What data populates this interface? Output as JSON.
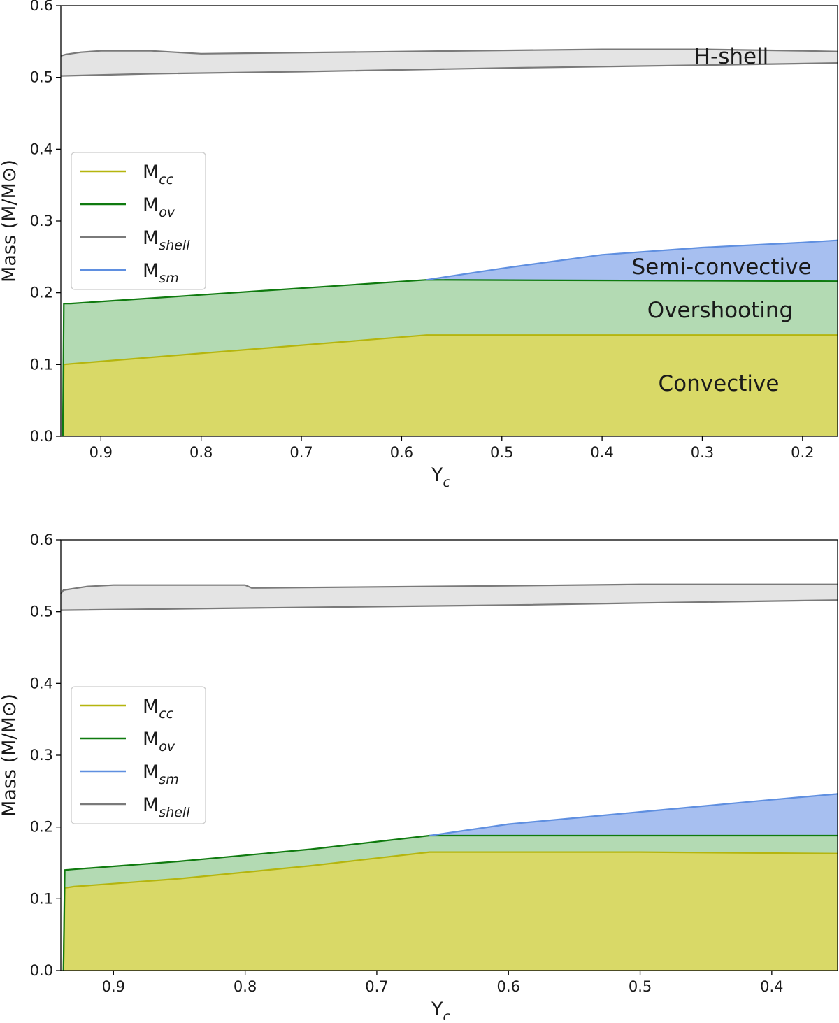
{
  "charts": [
    {
      "chart_data": {
        "type": "area",
        "x_reversed": true,
        "xlabel": "Y",
        "xlabel_sub": "c",
        "ylabel": "Mass (M/M⊙)",
        "xlim": [
          0.94,
          0.165
        ],
        "ylim": [
          0.0,
          0.6
        ],
        "xticks": [
          "0.9",
          "0.8",
          "0.7",
          "0.6",
          "0.5",
          "0.4",
          "0.3",
          "0.2"
        ],
        "xtick_values": [
          0.9,
          0.8,
          0.7,
          0.6,
          0.5,
          0.4,
          0.3,
          0.2
        ],
        "yticks": [
          "0.0",
          "0.1",
          "0.2",
          "0.3",
          "0.4",
          "0.5",
          "0.6"
        ],
        "ytick_values": [
          0.0,
          0.1,
          0.2,
          0.3,
          0.4,
          0.5,
          0.6
        ],
        "series": [
          {
            "name": "M",
            "sub": "cc",
            "key": "cc",
            "x": [
              0.938,
              0.937,
              0.93,
              0.575,
              0.165
            ],
            "values": [
              0.0,
              0.1,
              0.101,
              0.141,
              0.141
            ]
          },
          {
            "name": "M",
            "sub": "ov",
            "key": "ov",
            "x": [
              0.938,
              0.937,
              0.93,
              0.575,
              0.165
            ],
            "values": [
              0.0,
              0.185,
              0.185,
              0.218,
              0.216
            ]
          },
          {
            "name": "M",
            "sub": "shell",
            "key": "shell",
            "x": [
              0.94,
              0.85,
              0.7,
              0.5,
              0.3,
              0.165
            ],
            "values": [
              0.502,
              0.505,
              0.508,
              0.513,
              0.517,
              0.52
            ]
          },
          {
            "name": "M",
            "sub": "sm",
            "key": "sm",
            "x": [
              0.575,
              0.5,
              0.4,
              0.3,
              0.2,
              0.165
            ],
            "values": [
              0.218,
              0.234,
              0.253,
              0.263,
              0.27,
              0.273
            ]
          }
        ],
        "shell_top": {
          "x": [
            0.94,
            0.935,
            0.92,
            0.9,
            0.85,
            0.8,
            0.6,
            0.4,
            0.3,
            0.2,
            0.165
          ],
          "values": [
            0.53,
            0.532,
            0.535,
            0.537,
            0.537,
            0.533,
            0.536,
            0.539,
            0.539,
            0.537,
            0.536
          ]
        },
        "fills": [
          {
            "from": "cc",
            "to": "zero",
            "label": "Convective",
            "color": "#d9d967"
          },
          {
            "from": "ov",
            "to": "cc",
            "label": "Overshooting",
            "color": "#b3dab3"
          },
          {
            "from": "sm",
            "to": "ov",
            "label": "Semi-convective",
            "color": "#a7bff0"
          },
          {
            "from": "shell_top",
            "to": "shell",
            "label": "H-shell",
            "color": "#e4e4e4"
          }
        ],
        "legend_order": [
          "cc",
          "ov",
          "shell",
          "sm"
        ],
        "legend_position": "center-left"
      }
    },
    {
      "chart_data": {
        "type": "area",
        "x_reversed": true,
        "xlabel": "Y",
        "xlabel_sub": "c",
        "ylabel": "Mass (M/M⊙)",
        "xlim": [
          0.94,
          0.35
        ],
        "ylim": [
          0.0,
          0.6
        ],
        "xticks": [
          "0.9",
          "0.8",
          "0.7",
          "0.6",
          "0.5",
          "0.4"
        ],
        "xtick_values": [
          0.9,
          0.8,
          0.7,
          0.6,
          0.5,
          0.4
        ],
        "yticks": [
          "0.0",
          "0.1",
          "0.2",
          "0.3",
          "0.4",
          "0.5",
          "0.6"
        ],
        "ytick_values": [
          0.0,
          0.1,
          0.2,
          0.3,
          0.4,
          0.5,
          0.6
        ],
        "series": [
          {
            "name": "M",
            "sub": "cc",
            "key": "cc",
            "x": [
              0.938,
              0.937,
              0.93,
              0.85,
              0.75,
              0.66,
              0.5,
              0.35
            ],
            "values": [
              0.0,
              0.115,
              0.117,
              0.128,
              0.146,
              0.165,
              0.165,
              0.163
            ]
          },
          {
            "name": "M",
            "sub": "ov",
            "key": "ov",
            "x": [
              0.938,
              0.937,
              0.93,
              0.85,
              0.75,
              0.66,
              0.5,
              0.35
            ],
            "values": [
              0.0,
              0.14,
              0.141,
              0.152,
              0.169,
              0.188,
              0.188,
              0.188
            ]
          },
          {
            "name": "M",
            "sub": "sm",
            "key": "sm",
            "x": [
              0.66,
              0.6,
              0.5,
              0.4,
              0.35
            ],
            "values": [
              0.188,
              0.204,
              0.221,
              0.238,
              0.246
            ]
          },
          {
            "name": "M",
            "sub": "shell",
            "key": "shell",
            "x": [
              0.94,
              0.8,
              0.6,
              0.5,
              0.35
            ],
            "values": [
              0.502,
              0.505,
              0.509,
              0.512,
              0.516
            ]
          }
        ],
        "shell_top": {
          "x": [
            0.94,
            0.938,
            0.92,
            0.9,
            0.8,
            0.795,
            0.6,
            0.5,
            0.35
          ],
          "values": [
            0.525,
            0.53,
            0.535,
            0.537,
            0.537,
            0.533,
            0.536,
            0.538,
            0.538
          ]
        },
        "fills": [
          {
            "from": "cc",
            "to": "zero",
            "color": "#d9d967"
          },
          {
            "from": "ov",
            "to": "cc",
            "color": "#b3dab3"
          },
          {
            "from": "sm",
            "to": "ov",
            "color": "#a7bff0"
          },
          {
            "from": "shell_top",
            "to": "shell",
            "color": "#e4e4e4"
          }
        ],
        "legend_order": [
          "cc",
          "ov",
          "sm",
          "shell"
        ],
        "legend_position": "center-left"
      }
    }
  ],
  "colors": {
    "cc": "#b5b50e",
    "ov": "#0f7a0f",
    "shell": "#7a7a7a",
    "sm": "#5f8fe0"
  }
}
